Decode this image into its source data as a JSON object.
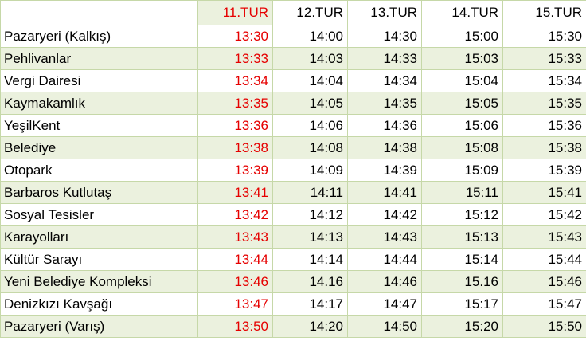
{
  "header": {
    "first_col": "",
    "tours": [
      "11.TUR",
      "12.TUR",
      "13.TUR",
      "14.TUR",
      "15.TUR"
    ]
  },
  "rows": [
    {
      "stop": "Pazaryeri (Kalkış)",
      "times": [
        "13:30",
        "14:00",
        "14:30",
        "15:00",
        "15:30"
      ]
    },
    {
      "stop": "Pehlivanlar",
      "times": [
        "13:33",
        "14:03",
        "14:33",
        "15:03",
        "15:33"
      ]
    },
    {
      "stop": "Vergi Dairesi",
      "times": [
        "13:34",
        "14:04",
        "14:34",
        "15:04",
        "15:34"
      ]
    },
    {
      "stop": "Kaymakamlık",
      "times": [
        "13:35",
        "14:05",
        "14:35",
        "15:05",
        "15:35"
      ]
    },
    {
      "stop": "YeşilKent",
      "times": [
        "13:36",
        "14:06",
        "14:36",
        "15:06",
        "15:36"
      ]
    },
    {
      "stop": "Belediye",
      "times": [
        "13:38",
        "14:08",
        "14:38",
        "15:08",
        "15:38"
      ]
    },
    {
      "stop": "Otopark",
      "times": [
        "13:39",
        "14:09",
        "14:39",
        "15:09",
        "15:39"
      ]
    },
    {
      "stop": "Barbaros Kutlutaş",
      "times": [
        "13:41",
        "14:11",
        "14:41",
        "15:11",
        "15:41"
      ]
    },
    {
      "stop": "Sosyal Tesisler",
      "times": [
        "13:42",
        "14:12",
        "14:42",
        "15:12",
        "15:42"
      ]
    },
    {
      "stop": "Karayolları",
      "times": [
        "13:43",
        "14:13",
        "14:43",
        "15:13",
        "15:43"
      ]
    },
    {
      "stop": "Kültür Sarayı",
      "times": [
        "13:44",
        "14:14",
        "14:44",
        "15:14",
        "15:44"
      ]
    },
    {
      "stop": "Yeni Belediye Kompleksi",
      "times": [
        "13:46",
        "14.16",
        "14:46",
        "15.16",
        "15:46"
      ]
    },
    {
      "stop": "Denizkızı Kavşağı",
      "times": [
        "13:47",
        "14:17",
        "14:47",
        "15:17",
        "15:47"
      ]
    },
    {
      "stop": "Pazaryeri (Varış)",
      "times": [
        "13:50",
        "14:20",
        "14:50",
        "15:20",
        "15:50"
      ]
    }
  ],
  "colors": {
    "highlight_text": "#e60000",
    "row_shade": "#ebf1de",
    "grid_line": "#c6d8a8"
  }
}
